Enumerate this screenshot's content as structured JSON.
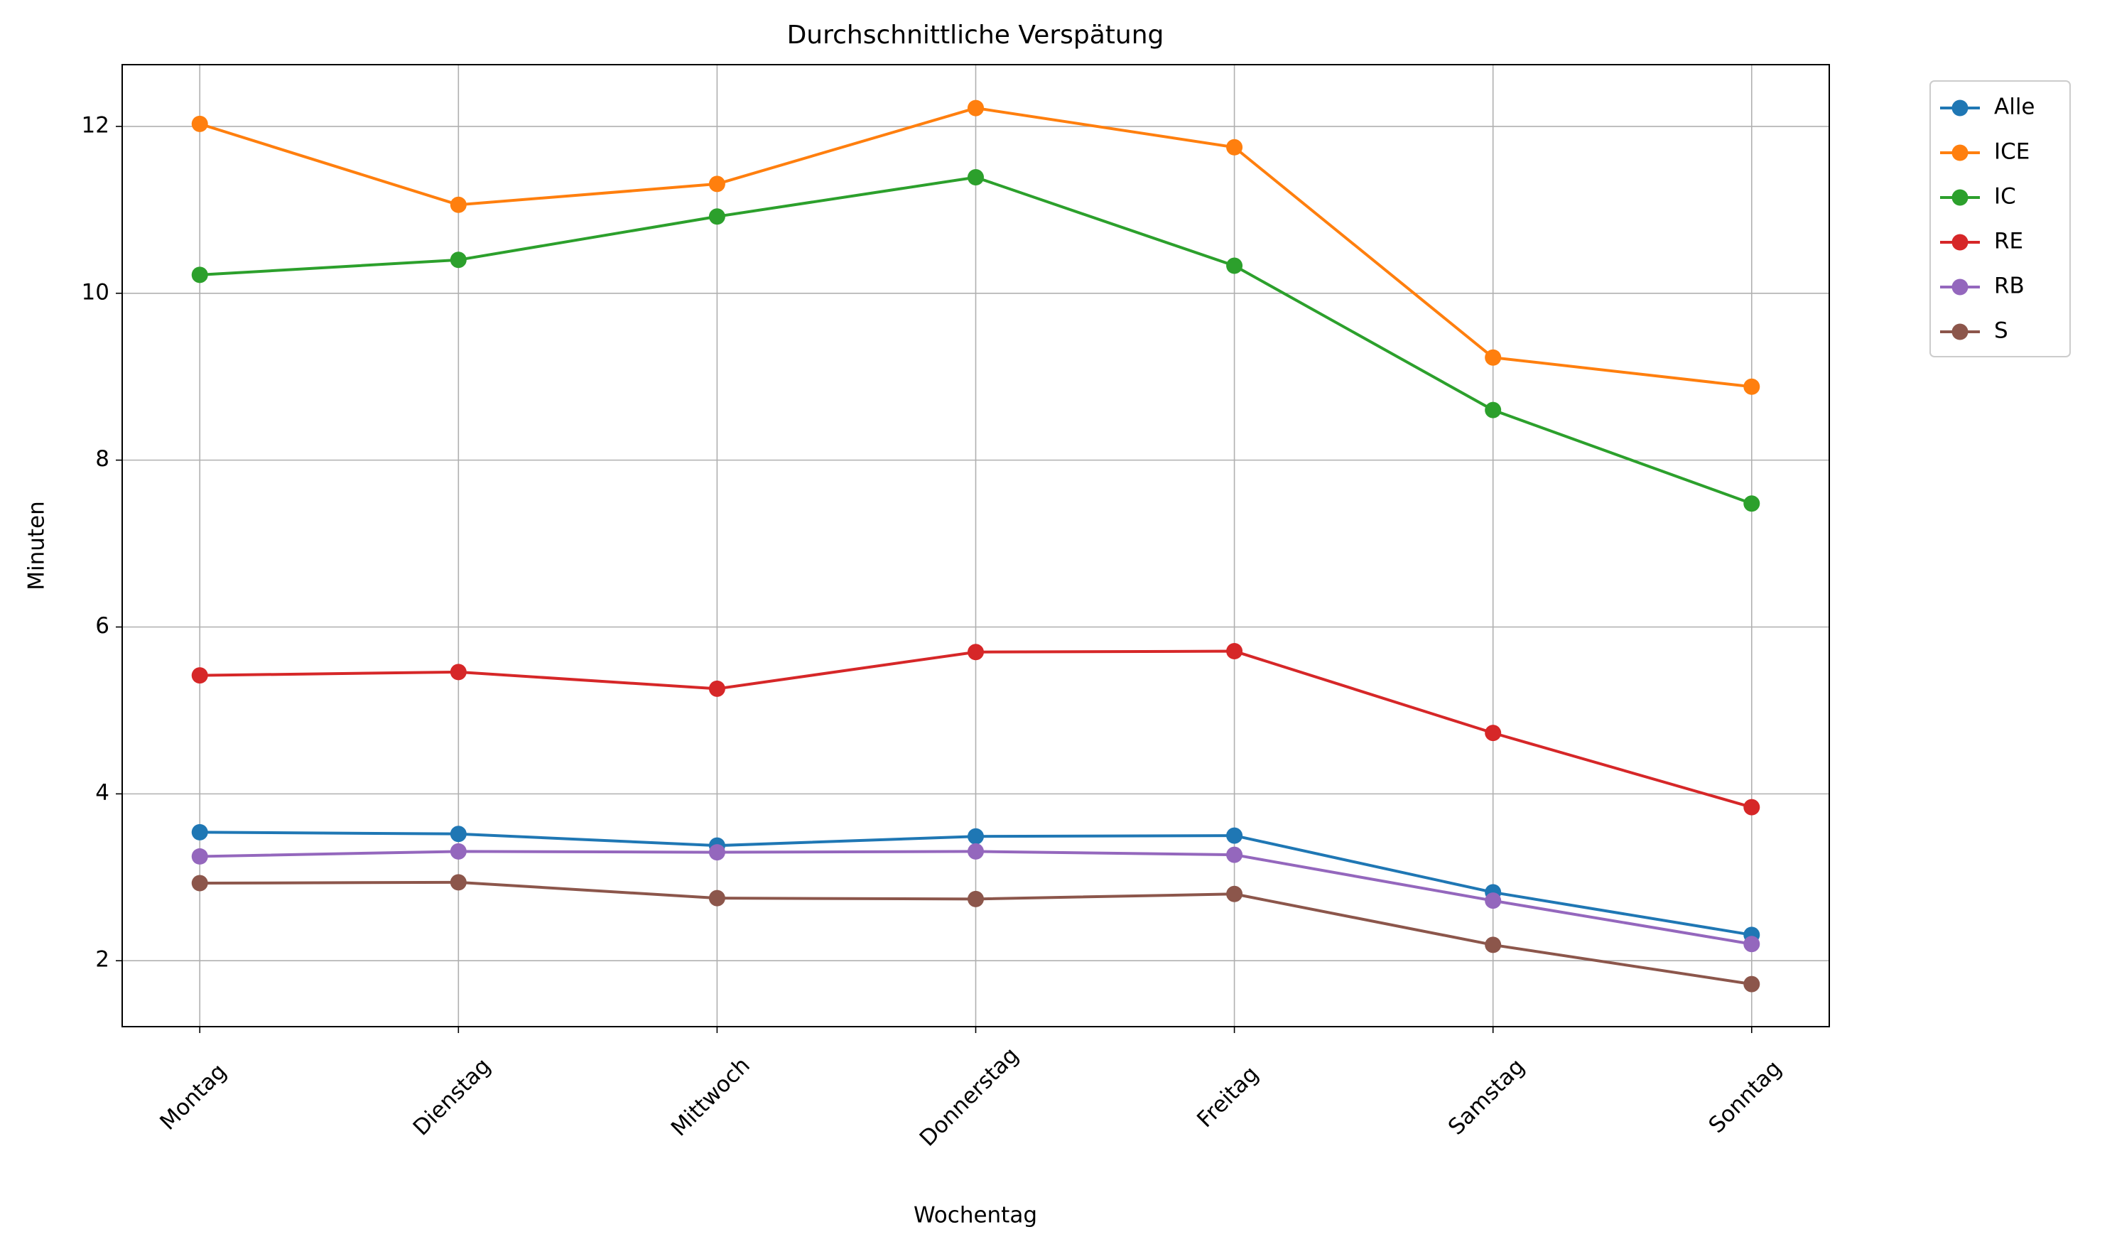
{
  "chart_data": {
    "type": "line",
    "title": "Durchschnittliche Verspätung",
    "x_label": "Wochentag",
    "y_label": "Minuten",
    "categories": [
      "Montag",
      "Dienstag",
      "Mittwoch",
      "Donnerstag",
      "Freitag",
      "Samstag",
      "Sonntag"
    ],
    "series": [
      {
        "name": "Alle",
        "color": "#1f77b4",
        "values": [
          3.54,
          3.52,
          3.38,
          3.49,
          3.5,
          2.82,
          2.31
        ]
      },
      {
        "name": "ICE",
        "color": "#ff7f0e",
        "values": [
          12.03,
          11.06,
          11.31,
          12.22,
          11.75,
          9.23,
          8.88
        ]
      },
      {
        "name": "IC",
        "color": "#2ca02c",
        "values": [
          10.22,
          10.4,
          10.92,
          11.39,
          10.33,
          8.6,
          7.48
        ]
      },
      {
        "name": "RE",
        "color": "#d62728",
        "values": [
          5.42,
          5.46,
          5.26,
          5.7,
          5.71,
          4.73,
          3.84
        ]
      },
      {
        "name": "RB",
        "color": "#9467bd",
        "values": [
          3.25,
          3.31,
          3.3,
          3.31,
          3.27,
          2.72,
          2.2
        ]
      },
      {
        "name": "S",
        "color": "#8c564b",
        "values": [
          2.93,
          2.94,
          2.75,
          2.74,
          2.8,
          2.19,
          1.72
        ]
      }
    ],
    "ylim": [
      1.21,
      12.74
    ],
    "yticks": [
      2,
      4,
      6,
      8,
      10,
      12
    ],
    "grid": true,
    "legend": "outside"
  }
}
